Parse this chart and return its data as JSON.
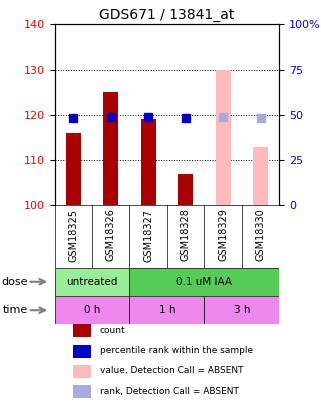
{
  "title": "GDS671 / 13841_at",
  "samples": [
    "GSM18325",
    "GSM18326",
    "GSM18327",
    "GSM18328",
    "GSM18329",
    "GSM18330"
  ],
  "bar_values": [
    116,
    125,
    119,
    107,
    130,
    113
  ],
  "bar_colors": [
    "#aa0000",
    "#aa0000",
    "#aa0000",
    "#aa0000",
    "#ffbbbb",
    "#ffbbbb"
  ],
  "rank_values": [
    48,
    49,
    49,
    48,
    49,
    48
  ],
  "rank_colors": [
    "#0000cc",
    "#0000cc",
    "#0000cc",
    "#0000cc",
    "#aaaadd",
    "#aaaadd"
  ],
  "ylim_left": [
    100,
    140
  ],
  "ylim_right": [
    0,
    100
  ],
  "yticks_left": [
    100,
    110,
    120,
    130,
    140
  ],
  "yticks_right": [
    0,
    25,
    50,
    75,
    100
  ],
  "ytick_labels_right": [
    "0",
    "25",
    "50",
    "75",
    "100%"
  ],
  "dose_labels": [
    {
      "text": "untreated",
      "span": [
        0,
        2
      ],
      "color": "#99ee99"
    },
    {
      "text": "0.1 uM IAA",
      "span": [
        2,
        6
      ],
      "color": "#55cc55"
    }
  ],
  "time_labels": [
    {
      "text": "0 h",
      "span": [
        0,
        2
      ],
      "color": "#ee88ee"
    },
    {
      "text": "1 h",
      "span": [
        2,
        4
      ],
      "color": "#ee88ee"
    },
    {
      "text": "3 h",
      "span": [
        4,
        6
      ],
      "color": "#ee88ee"
    }
  ],
  "dose_arrow_label": "dose",
  "time_arrow_label": "time",
  "legend_items": [
    {
      "color": "#aa0000",
      "label": "count"
    },
    {
      "color": "#0000cc",
      "label": "percentile rank within the sample"
    },
    {
      "color": "#ffbbbb",
      "label": "value, Detection Call = ABSENT"
    },
    {
      "color": "#aaaadd",
      "label": "rank, Detection Call = ABSENT"
    }
  ],
  "grid_color": "#000000",
  "grid_linestyle": "dotted",
  "bar_width": 0.4,
  "rank_marker_size": 6
}
